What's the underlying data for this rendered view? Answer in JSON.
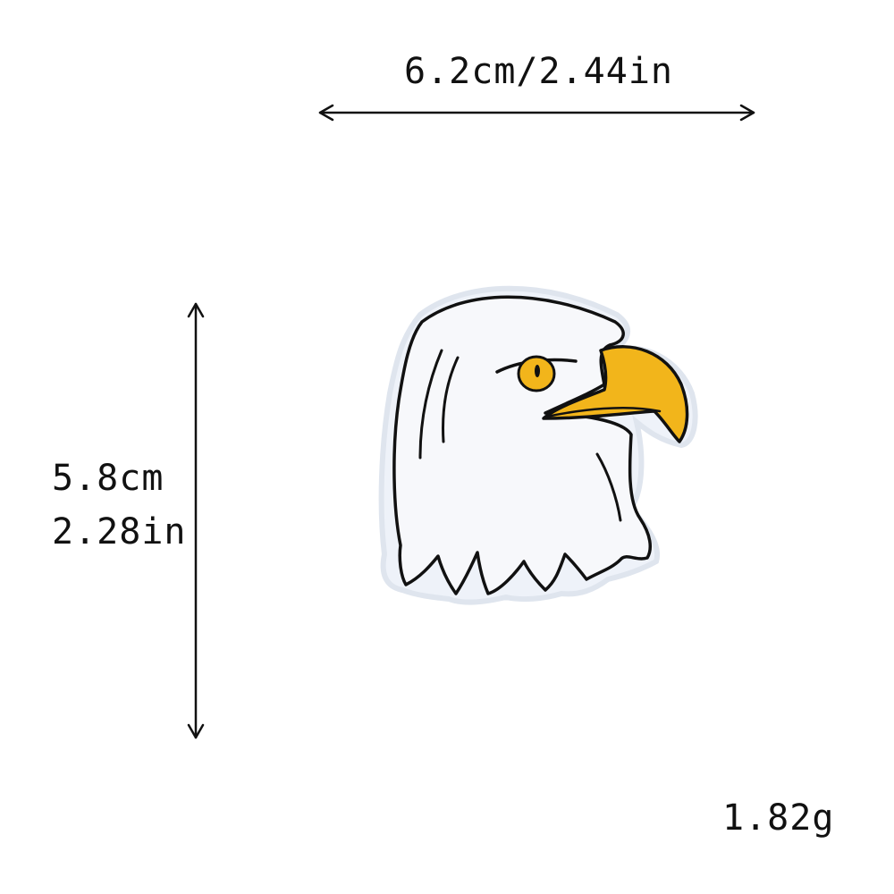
{
  "dimensions": {
    "width_label": "6.2cm/2.44in",
    "height_label_cm": "5.8cm",
    "height_label_in": "2.28in",
    "weight_label": "1.82g"
  },
  "patch": {
    "subject": "eagle-head",
    "colors": {
      "head": "#f7f8fb",
      "outline": "#111111",
      "beak": "#f2b51b",
      "eye": "#f2b51b",
      "background": "#ffffff"
    }
  },
  "icons": {
    "width_arrow": "double-arrow-horizontal",
    "height_arrow": "double-arrow-vertical"
  }
}
